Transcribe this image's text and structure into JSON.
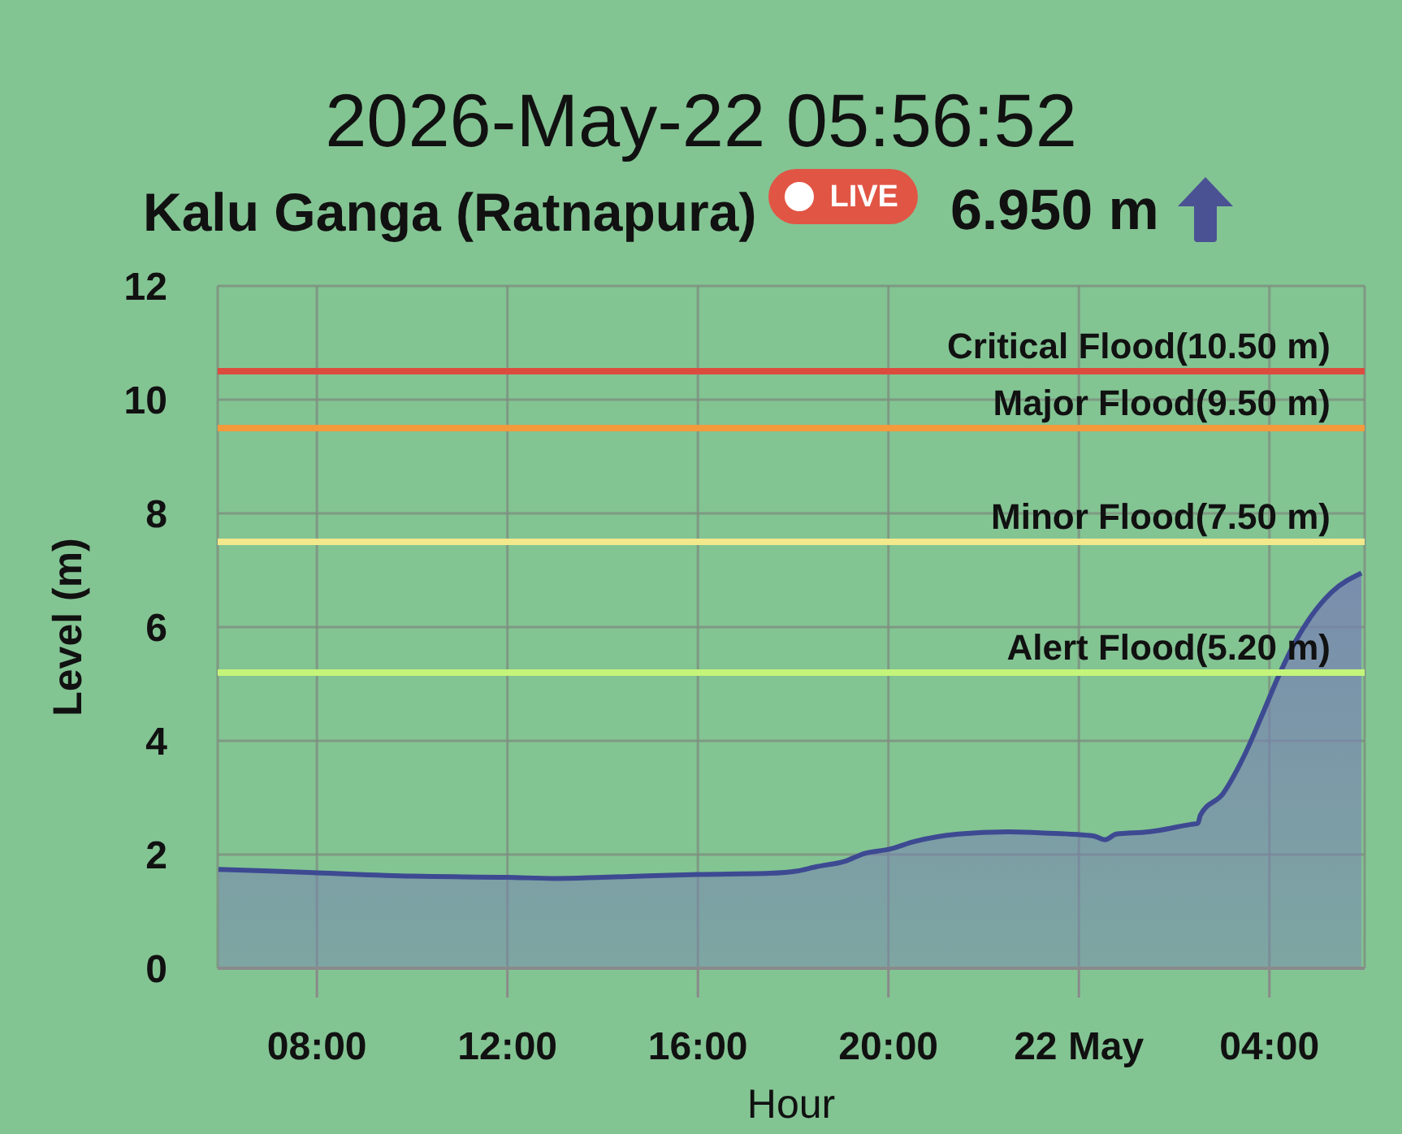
{
  "chart_data": {
    "type": "area",
    "title": "2026-May-22 05:56:52",
    "subtitle": "Kalu Ganga (Ratnapura)",
    "annotations": [
      "LIVE",
      "6.950 m"
    ],
    "xlabel": "Hour",
    "ylabel": "Level (m)",
    "x": [
      "2026-05-21T05:56",
      "2026-05-21T07:00",
      "2026-05-21T08:00",
      "2026-05-21T10:00",
      "2026-05-21T12:00",
      "2026-05-21T13:00",
      "2026-05-21T14:00",
      "2026-05-21T16:00",
      "2026-05-21T17:30",
      "2026-05-21T18:05",
      "2026-05-21T18:30",
      "2026-05-21T19:05",
      "2026-05-21T19:30",
      "2026-05-21T20:00",
      "2026-05-21T20:33",
      "2026-05-21T21:28",
      "2026-05-21T22:30",
      "2026-05-21T23:17",
      "2026-05-22T00:18",
      "2026-05-22T00:33",
      "2026-05-22T00:47",
      "2026-05-22T01:28",
      "2026-05-22T02:21",
      "2026-05-22T02:30",
      "2026-05-22T02:33",
      "2026-05-22T03:02",
      "2026-05-22T03:30",
      "2026-05-22T03:51",
      "2026-05-22T04:11",
      "2026-05-22T04:31",
      "2026-05-22T04:52",
      "2026-05-22T05:18",
      "2026-05-22T05:56"
    ],
    "values": [
      1.74,
      1.71,
      1.68,
      1.62,
      1.6,
      1.58,
      1.6,
      1.65,
      1.67,
      1.71,
      1.79,
      1.88,
      2.02,
      2.09,
      2.23,
      2.36,
      2.4,
      2.38,
      2.33,
      2.26,
      2.36,
      2.4,
      2.53,
      2.55,
      2.69,
      3.08,
      3.79,
      4.46,
      5.12,
      5.7,
      6.18,
      6.61,
      6.95
    ],
    "color": "#3d4a92",
    "xlim": [
      "2026-05-21T05:55",
      "2026-05-22T06:00"
    ],
    "xticks": [
      {
        "value": "2026-05-21T08:00",
        "label": "08:00"
      },
      {
        "value": "2026-05-21T12:00",
        "label": "12:00"
      },
      {
        "value": "2026-05-21T16:00",
        "label": "16:00"
      },
      {
        "value": "2026-05-21T20:00",
        "label": "20:00"
      },
      {
        "value": "2026-05-22T00:00",
        "label": "22 May"
      },
      {
        "value": "2026-05-22T04:00",
        "label": "04:00"
      }
    ],
    "ylim": [
      0,
      12
    ],
    "yticks": [
      0,
      2,
      4,
      6,
      8,
      10,
      12
    ],
    "grid": true,
    "ref_lines": [
      {
        "axis": "y",
        "value": 10.5,
        "label": "Critical Flood(10.50 m)",
        "color": "#dc4c3e"
      },
      {
        "axis": "y",
        "value": 9.5,
        "label": "Major Flood(9.50 m)",
        "color": "#f29a3c"
      },
      {
        "axis": "y",
        "value": 7.5,
        "label": "Minor Flood(7.50 m)",
        "color": "#f2e88c"
      },
      {
        "axis": "y",
        "value": 5.2,
        "label": "Alert Flood(5.20 m)",
        "color": "#c4f57a"
      }
    ]
  }
}
